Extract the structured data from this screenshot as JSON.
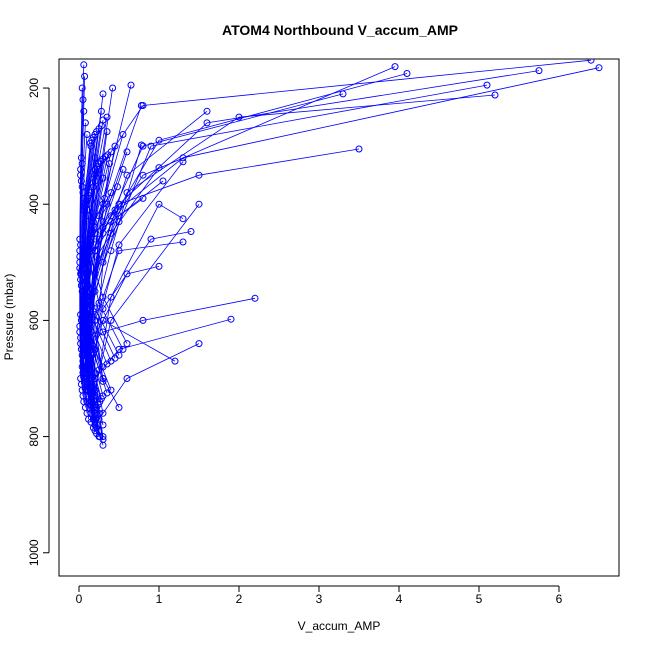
{
  "chart_data": {
    "type": "line",
    "title": "ATOM4 Northbound V_accum_AMP",
    "xlabel": "V_accum_AMP",
    "ylabel": "Pressure (mbar)",
    "xlim": [
      -0.25,
      6.75
    ],
    "ylim": [
      1040,
      150
    ],
    "y_reversed": true,
    "grid": false,
    "legend": "none",
    "marker": "open-circle",
    "line_color": "#0000ff",
    "x_ticks": [
      0,
      1,
      2,
      3,
      4,
      5,
      6
    ],
    "x_tick_labels": [
      "0",
      "1",
      "2",
      "3",
      "4",
      "5",
      "6"
    ],
    "y_ticks": [
      200,
      400,
      600,
      800,
      1000
    ],
    "y_tick_labels": [
      "200",
      "400",
      "600",
      "800",
      "1000"
    ],
    "series": [
      {
        "x": [
          0.3,
          0.25,
          0.2,
          0.18,
          0.15,
          0.12,
          0.1,
          0.05,
          0.08,
          0.1,
          0.05,
          0.1,
          0.2,
          0.3
        ],
        "y": [
          815,
          790,
          770,
          750,
          730,
          710,
          690,
          670,
          640,
          600,
          550,
          500,
          450,
          400
        ]
      },
      {
        "x": [
          0.5,
          0.3,
          0.2,
          0.1,
          0.05,
          0.1,
          0.2,
          0.5,
          1.5,
          3.5
        ],
        "y": [
          750,
          700,
          650,
          600,
          550,
          500,
          450,
          400,
          350,
          305
        ]
      },
      {
        "x": [
          0.2,
          0.1,
          0.15,
          0.3,
          0.8,
          2.2
        ],
        "y": [
          700,
          660,
          640,
          620,
          600,
          562
        ]
      },
      {
        "x": [
          0.1,
          0.2,
          0.5,
          1.9
        ],
        "y": [
          740,
          700,
          650,
          598
        ]
      },
      {
        "x": [
          0.2,
          0.1,
          0.05,
          0.1,
          0.3,
          1.2
        ],
        "y": [
          760,
          720,
          690,
          650,
          600,
          670
        ]
      },
      {
        "x": [
          0.2,
          0.6,
          1.5
        ],
        "y": [
          780,
          700,
          640
        ]
      },
      {
        "x": [
          0.3,
          0.2,
          0.1,
          0.4,
          1.3,
          6.5
        ],
        "y": [
          705,
          600,
          500,
          420,
          320,
          165
        ]
      },
      {
        "x": [
          0.15,
          0.1,
          0.2,
          0.6,
          2.0,
          5.2
        ],
        "y": [
          745,
          640,
          520,
          380,
          250,
          212
        ]
      },
      {
        "x": [
          0.2,
          0.1,
          0.3,
          0.8,
          3.3
        ],
        "y": [
          730,
          600,
          450,
          300,
          210
        ]
      },
      {
        "x": [
          0.1,
          0.15,
          0.5,
          1.6,
          5.75
        ],
        "y": [
          690,
          560,
          400,
          260,
          170
        ]
      },
      {
        "x": [
          0.2,
          0.1,
          0.4,
          1.0,
          4.1
        ],
        "y": [
          720,
          580,
          430,
          290,
          175
        ]
      },
      {
        "x": [
          0.3,
          0.1,
          0.2,
          0.8,
          6.4
        ],
        "y": [
          700,
          550,
          350,
          230,
          152
        ]
      },
      {
        "x": [
          0.15,
          0.3,
          0.9,
          5.1
        ],
        "y": [
          760,
          500,
          300,
          195
        ]
      },
      {
        "x": [
          0.1,
          0.2,
          0.6,
          1.6
        ],
        "y": [
          700,
          520,
          350,
          240
        ]
      },
      {
        "x": [
          0.2,
          0.4,
          1.0,
          1.3
        ],
        "y": [
          730,
          560,
          400,
          425
        ]
      },
      {
        "x": [
          0.1,
          0.3,
          0.9,
          1.4
        ],
        "y": [
          720,
          580,
          460,
          447
        ]
      },
      {
        "x": [
          0.1,
          0.2,
          0.5,
          1.3
        ],
        "y": [
          710,
          600,
          480,
          465
        ]
      },
      {
        "x": [
          0.2,
          0.4,
          1.5
        ],
        "y": [
          720,
          600,
          400
        ]
      },
      {
        "x": [
          0.1,
          0.3,
          0.6,
          1.0
        ],
        "y": [
          700,
          600,
          520,
          507
        ]
      },
      {
        "x": [
          0.3,
          0.1,
          0.2,
          0.8,
          3.95
        ],
        "y": [
          760,
          620,
          480,
          350,
          163
        ]
      },
      {
        "x": [
          0.2,
          0.15,
          0.5,
          1.3
        ],
        "y": [
          770,
          650,
          470,
          327
        ]
      },
      {
        "x": [
          0.2,
          0.1,
          0.4,
          1.0
        ],
        "y": [
          740,
          610,
          450,
          337
        ]
      },
      {
        "x": [
          0.1,
          0.2,
          0.5,
          1.05
        ],
        "y": [
          700,
          550,
          420,
          360
        ]
      },
      {
        "x": [
          0.25,
          0.15,
          0.4,
          0.78
        ],
        "y": [
          760,
          620,
          480,
          298
        ]
      },
      {
        "x": [
          0.2,
          0.1,
          0.3,
          0.8
        ],
        "y": [
          745,
          600,
          440,
          390
        ]
      },
      {
        "x": [
          0.3,
          0.15,
          0.05,
          0.2,
          0.55
        ],
        "y": [
          780,
          700,
          600,
          450,
          280
        ]
      },
      {
        "x": [
          0.25,
          0.12,
          0.3,
          0.6
        ],
        "y": [
          770,
          640,
          430,
          310
        ]
      },
      {
        "x": [
          0.2,
          0.1,
          0.25,
          0.65
        ],
        "y": [
          760,
          620,
          420,
          195
        ]
      },
      {
        "x": [
          0.3,
          0.2,
          0.1,
          0.35,
          0.78
        ],
        "y": [
          800,
          720,
          620,
          400,
          230
        ]
      },
      {
        "x": [
          0.25,
          0.1,
          0.2,
          0.45
        ],
        "y": [
          790,
          680,
          480,
          300
        ]
      },
      {
        "x": [
          0.2,
          0.08,
          0.15,
          0.42
        ],
        "y": [
          780,
          650,
          450,
          200
        ]
      },
      {
        "x": [
          0.18,
          0.06,
          0.12,
          0.3
        ],
        "y": [
          770,
          640,
          420,
          210
        ]
      },
      {
        "x": [
          0.15,
          0.05,
          0.1,
          0.28
        ],
        "y": [
          760,
          620,
          400,
          240
        ]
      },
      {
        "x": [
          0.2,
          0.1,
          0.15,
          0.35
        ],
        "y": [
          775,
          660,
          480,
          275
        ]
      },
      {
        "x": [
          0.22,
          0.12,
          0.2,
          0.38
        ],
        "y": [
          785,
          700,
          520,
          330
        ]
      },
      {
        "x": [
          0.25,
          0.15,
          0.1,
          0.25,
          0.55
        ],
        "y": [
          800,
          740,
          620,
          460,
          340
        ]
      },
      {
        "x": [
          0.3,
          0.18,
          0.08,
          0.2,
          0.48
        ],
        "y": [
          805,
          730,
          600,
          440,
          370
        ]
      },
      {
        "x": [
          0.2,
          0.1,
          0.06,
          0.18,
          0.4
        ],
        "y": [
          790,
          710,
          580,
          430,
          380
        ]
      },
      {
        "x": [
          0.15,
          0.08,
          0.05,
          0.12,
          0.3
        ],
        "y": [
          775,
          690,
          560,
          420,
          355
        ]
      },
      {
        "x": [
          0.18,
          0.1,
          0.06,
          0.15,
          0.32
        ],
        "y": [
          785,
          705,
          575,
          445,
          390
        ]
      },
      {
        "x": [
          0.22,
          0.12,
          0.07,
          0.2,
          0.45
        ],
        "y": [
          795,
          720,
          590,
          470,
          410
        ]
      },
      {
        "x": [
          0.26,
          0.14,
          0.08,
          0.22,
          0.5
        ],
        "y": [
          800,
          725,
          600,
          490,
          430
        ]
      },
      {
        "x": [
          0.12,
          0.06,
          0.04,
          0.1,
          0.25
        ],
        "y": [
          770,
          680,
          550,
          410,
          340
        ]
      },
      {
        "x": [
          0.1,
          0.05,
          0.03,
          0.08,
          0.2
        ],
        "y": [
          760,
          670,
          540,
          400,
          320
        ]
      },
      {
        "x": [
          0.08,
          0.04,
          0.02,
          0.06,
          0.15
        ],
        "y": [
          750,
          660,
          530,
          390,
          300
        ]
      },
      {
        "x": [
          0.06,
          0.03,
          0.02,
          0.05,
          0.1
        ],
        "y": [
          740,
          650,
          520,
          380,
          280
        ]
      },
      {
        "x": [
          0.05,
          0.02,
          0.01,
          0.04,
          0.08
        ],
        "y": [
          730,
          640,
          510,
          370,
          260
        ]
      },
      {
        "x": [
          0.04,
          0.02,
          0.01,
          0.03,
          0.06
        ],
        "y": [
          720,
          630,
          500,
          360,
          240
        ]
      },
      {
        "x": [
          0.03,
          0.01,
          0.01,
          0.02,
          0.05
        ],
        "y": [
          710,
          620,
          490,
          350,
          220
        ]
      },
      {
        "x": [
          0.02,
          0.01,
          0.01,
          0.02,
          0.04
        ],
        "y": [
          700,
          610,
          480,
          340,
          200
        ]
      },
      {
        "x": [
          0.05,
          0.03,
          0.02,
          0.04,
          0.07
        ],
        "y": [
          690,
          600,
          470,
          330,
          180
        ]
      },
      {
        "x": [
          0.04,
          0.02,
          0.01,
          0.03,
          0.06
        ],
        "y": [
          680,
          590,
          460,
          320,
          160
        ]
      },
      {
        "x": [
          0.6,
          0.3,
          0.1,
          0.2,
          0.35
        ],
        "y": [
          640,
          560,
          470,
          360,
          250
        ]
      },
      {
        "x": [
          0.55,
          0.25,
          0.1,
          0.18,
          0.3
        ],
        "y": [
          650,
          570,
          480,
          370,
          255
        ]
      },
      {
        "x": [
          0.5,
          0.2,
          0.08,
          0.15,
          0.28
        ],
        "y": [
          660,
          580,
          490,
          380,
          265
        ]
      },
      {
        "x": [
          0.45,
          0.18,
          0.07,
          0.12,
          0.25
        ],
        "y": [
          665,
          585,
          495,
          385,
          270
        ]
      },
      {
        "x": [
          0.4,
          0.15,
          0.06,
          0.1,
          0.22
        ],
        "y": [
          670,
          590,
          500,
          390,
          275
        ]
      },
      {
        "x": [
          0.35,
          0.12,
          0.05,
          0.09,
          0.2
        ],
        "y": [
          675,
          595,
          505,
          395,
          280
        ]
      },
      {
        "x": [
          0.3,
          0.1,
          0.04,
          0.08,
          0.18
        ],
        "y": [
          680,
          600,
          510,
          400,
          285
        ]
      },
      {
        "x": [
          0.25,
          0.09,
          0.03,
          0.07,
          0.16
        ],
        "y": [
          685,
          605,
          515,
          405,
          290
        ]
      },
      {
        "x": [
          0.2,
          0.08,
          0.03,
          0.06,
          0.14
        ],
        "y": [
          690,
          610,
          520,
          410,
          295
        ]
      },
      {
        "x": [
          0.4,
          0.2,
          0.1,
          0.15,
          0.4
        ],
        "y": [
          720,
          650,
          560,
          460,
          310
        ]
      },
      {
        "x": [
          0.35,
          0.18,
          0.09,
          0.14,
          0.36
        ],
        "y": [
          725,
          655,
          565,
          465,
          315
        ]
      },
      {
        "x": [
          0.3,
          0.16,
          0.08,
          0.13,
          0.33
        ],
        "y": [
          730,
          660,
          570,
          470,
          318
        ]
      },
      {
        "x": [
          0.28,
          0.14,
          0.07,
          0.12,
          0.3
        ],
        "y": [
          735,
          665,
          575,
          475,
          322
        ]
      },
      {
        "x": [
          0.26,
          0.12,
          0.06,
          0.11,
          0.27
        ],
        "y": [
          740,
          670,
          580,
          480,
          326
        ]
      },
      {
        "x": [
          0.24,
          0.11,
          0.05,
          0.1,
          0.24
        ],
        "y": [
          745,
          675,
          585,
          485,
          330
        ]
      },
      {
        "x": [
          0.22,
          0.1,
          0.05,
          0.09,
          0.22
        ],
        "y": [
          750,
          680,
          590,
          490,
          335
        ]
      },
      {
        "x": [
          0.2,
          0.09,
          0.04,
          0.08,
          0.2
        ],
        "y": [
          755,
          685,
          595,
          495,
          340
        ]
      }
    ]
  }
}
